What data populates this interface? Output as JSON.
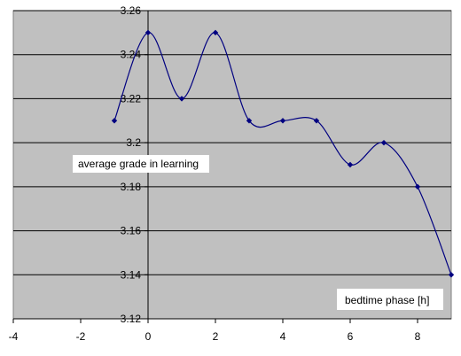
{
  "chart_data": {
    "type": "line",
    "smooth": true,
    "x": [
      -1,
      0,
      1,
      2,
      3,
      4,
      5,
      6,
      7,
      8,
      9
    ],
    "y": [
      3.21,
      3.25,
      3.22,
      3.25,
      3.21,
      3.21,
      3.21,
      3.19,
      3.2,
      3.18,
      3.14
    ],
    "xlim": [
      -4,
      9
    ],
    "ylim": [
      3.12,
      3.26
    ],
    "xticks": [
      "-4",
      "-2",
      "0",
      "2",
      "4",
      "6",
      "8"
    ],
    "yticks": [
      "3.12",
      "3.14",
      "3.16",
      "3.18",
      "3.2",
      "3.22",
      "3.24",
      "3.26"
    ],
    "ylabel": "average grade in learning",
    "xlabel": "bedtime phase [h]",
    "grid": true,
    "colors": {
      "plot_bg": "#c0c0c0",
      "line": "#000080",
      "grid": "#000000"
    }
  }
}
